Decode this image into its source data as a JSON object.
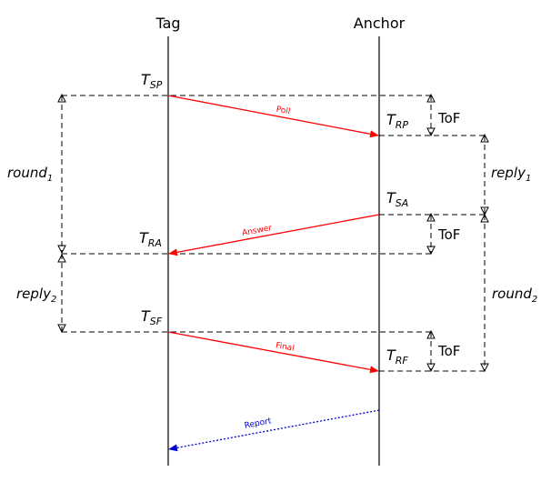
{
  "lifelines": {
    "tag": "Tag",
    "anchor": "Anchor"
  },
  "timestamps": {
    "tsp": {
      "base": "T",
      "sub": "SP"
    },
    "trp": {
      "base": "T",
      "sub": "RP"
    },
    "tsa": {
      "base": "T",
      "sub": "SA"
    },
    "tra": {
      "base": "T",
      "sub": "RA"
    },
    "tsf": {
      "base": "T",
      "sub": "SF"
    },
    "trf": {
      "base": "T",
      "sub": "RF"
    }
  },
  "messages": {
    "poll": "Poll",
    "answer": "Answer",
    "final": "Final",
    "report": "Report"
  },
  "intervals": {
    "round1": {
      "base": "round",
      "sub": "1"
    },
    "reply1": {
      "base": "reply",
      "sub": "1"
    },
    "reply2": {
      "base": "reply",
      "sub": "2"
    },
    "round2": {
      "base": "round",
      "sub": "2"
    },
    "tof": "ToF"
  },
  "colors": {
    "message": "#ff0000",
    "report": "#0000cc",
    "line": "#000000"
  }
}
